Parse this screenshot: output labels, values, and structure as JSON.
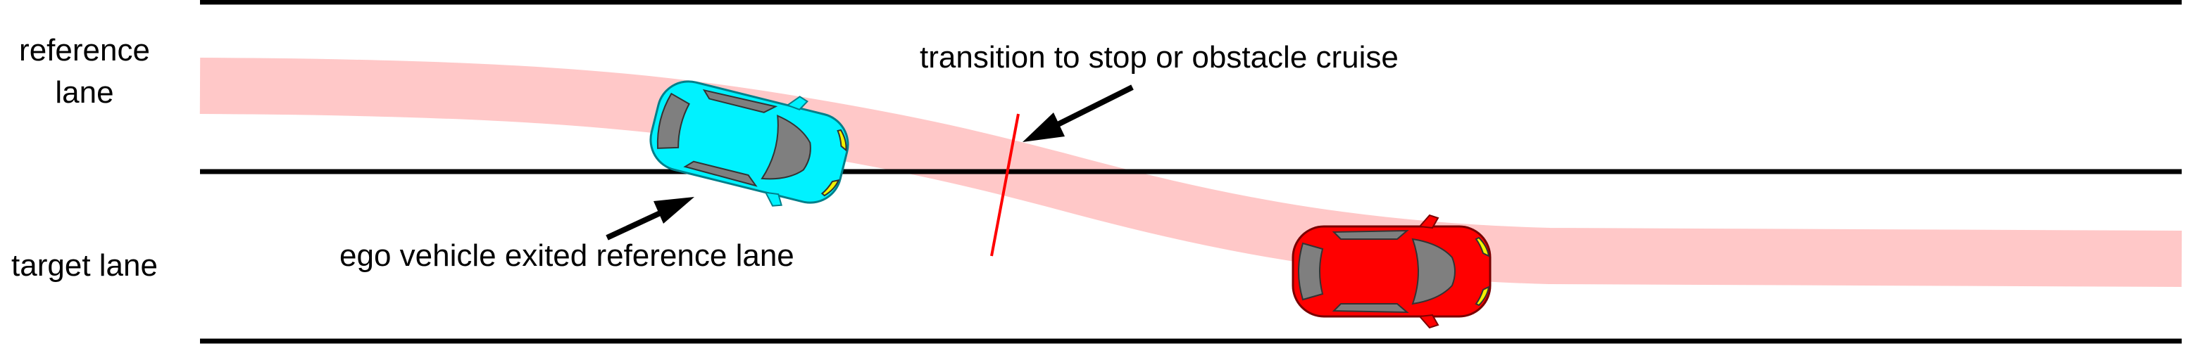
{
  "lanes": {
    "reference_label": "reference lane",
    "target_label": "target lane"
  },
  "annotations": {
    "transition": "transition to stop or obstacle cruise",
    "ego_exit": "ego vehicle exited reference lane"
  },
  "colors": {
    "lane_line": "#000000",
    "path_band": "#ffc8c8",
    "transition_line": "#ff0000",
    "ego_vehicle": "#00f2ff",
    "other_vehicle": "#ff0000",
    "window": "#7f7f7f",
    "headlight": "#f2f200"
  },
  "icons": {
    "ego": "ego-car-icon",
    "obstacle": "red-car-icon"
  }
}
